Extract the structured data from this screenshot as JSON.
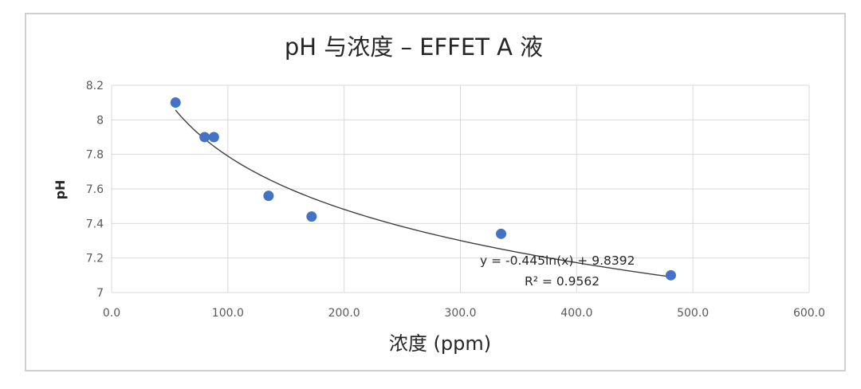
{
  "chart_data": {
    "type": "scatter",
    "title": "pH 与浓度 – EFFET A 液",
    "xlabel": "浓度 (ppm)",
    "ylabel": "pH",
    "xlim": [
      0,
      600
    ],
    "ylim": [
      7,
      8.2
    ],
    "x_ticks": [
      "0.0",
      "100.0",
      "200.0",
      "300.0",
      "400.0",
      "500.0",
      "600.0"
    ],
    "y_ticks": [
      "7",
      "7.2",
      "7.4",
      "7.6",
      "7.8",
      "8",
      "8.2"
    ],
    "grid": true,
    "points": [
      {
        "x": 55,
        "y": 8.1
      },
      {
        "x": 80,
        "y": 7.9
      },
      {
        "x": 88,
        "y": 7.9
      },
      {
        "x": 135,
        "y": 7.56
      },
      {
        "x": 172,
        "y": 7.44
      },
      {
        "x": 335,
        "y": 7.34
      },
      {
        "x": 481,
        "y": 7.1
      }
    ],
    "trendline": {
      "type": "logarithmic",
      "a": -0.445,
      "b": 9.8392,
      "x_from": 55,
      "x_to": 481
    },
    "annotations": [
      "y = -0.445ln(x) + 9.8392",
      "R² = 0.9562"
    ],
    "colors": {
      "marker": "#4472c4",
      "trendline": "#404040",
      "grid": "#d9d9d9"
    }
  }
}
